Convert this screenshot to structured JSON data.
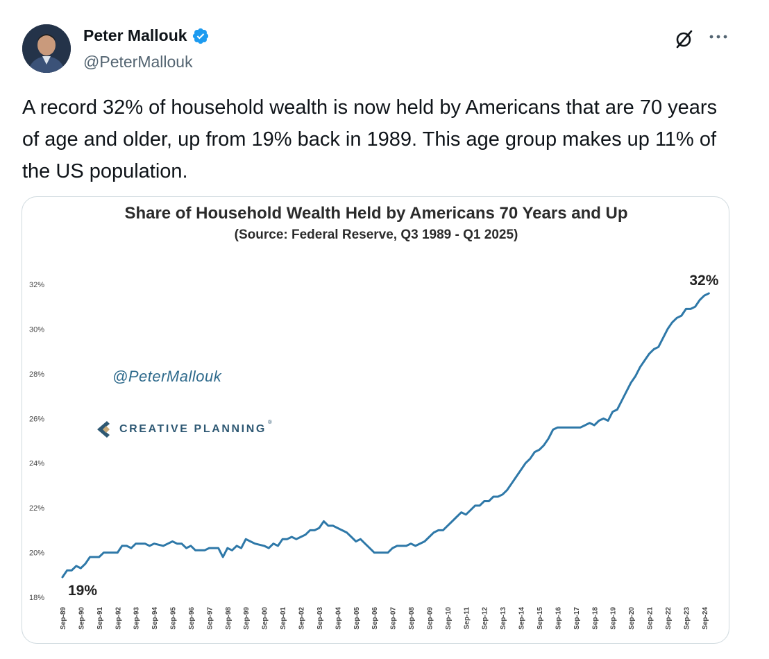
{
  "author": {
    "display_name": "Peter Mallouk",
    "handle": "@PeterMallouk",
    "verified": true
  },
  "icons": {
    "avatar": "avatar-photo",
    "verified": "verified-badge-icon",
    "grok": "grok-slash-icon",
    "more": "more-options-icon"
  },
  "colors": {
    "verified_blue": "#1d9bf0",
    "line": "#2e78a8",
    "brand_navy": "#2e5873",
    "brand_tan": "#c8a978"
  },
  "tweet": {
    "text": "A record 32% of household wealth is now held by Americans that are 70 years of age and older, up from 19% back in 1989. This age group makes up 11% of the US population."
  },
  "media": {
    "watermark_handle": "@PeterMallouk",
    "brand_name": "CREATIVE PLANNING",
    "brand_mark": "®"
  },
  "chart_data": {
    "type": "line",
    "title": "Share of Household Wealth Held by Americans 70 Years and Up",
    "subtitle": "(Source: Federal Reserve, Q3 1989 - Q1 2025)",
    "xlabel": "",
    "ylabel": "",
    "ylim": [
      18,
      32
    ],
    "yticks": [
      "18%",
      "20%",
      "22%",
      "24%",
      "26%",
      "28%",
      "30%",
      "32%"
    ],
    "ytick_values": [
      18,
      20,
      22,
      24,
      26,
      28,
      30,
      32
    ],
    "xticks": [
      "Sep-89",
      "Sep-90",
      "Sep-91",
      "Sep-92",
      "Sep-93",
      "Sep-94",
      "Sep-95",
      "Sep-96",
      "Sep-97",
      "Sep-98",
      "Sep-99",
      "Sep-00",
      "Sep-01",
      "Sep-02",
      "Sep-03",
      "Sep-04",
      "Sep-05",
      "Sep-06",
      "Sep-07",
      "Sep-08",
      "Sep-09",
      "Sep-10",
      "Sep-11",
      "Sep-12",
      "Sep-13",
      "Sep-14",
      "Sep-15",
      "Sep-16",
      "Sep-17",
      "Sep-18",
      "Sep-19",
      "Sep-20",
      "Sep-21",
      "Sep-22",
      "Sep-23",
      "Sep-24"
    ],
    "xrange": [
      1989.75,
      2025.25
    ],
    "grid": false,
    "annotations": [
      {
        "text": "19%",
        "x": 1989.75,
        "y": 18.9
      },
      {
        "text": "32%",
        "x": 2025.0,
        "y": 31.6
      }
    ],
    "series": [
      {
        "points": [
          [
            1989.75,
            18.9
          ],
          [
            1990.0,
            19.2
          ],
          [
            1990.25,
            19.2
          ],
          [
            1990.5,
            19.4
          ],
          [
            1990.75,
            19.3
          ],
          [
            1991.0,
            19.5
          ],
          [
            1991.25,
            19.8
          ],
          [
            1991.75,
            19.8
          ],
          [
            1992.0,
            20.0
          ],
          [
            1992.75,
            20.0
          ],
          [
            1993.0,
            20.3
          ],
          [
            1993.25,
            20.3
          ],
          [
            1993.5,
            20.2
          ],
          [
            1993.75,
            20.4
          ],
          [
            1994.25,
            20.4
          ],
          [
            1994.5,
            20.3
          ],
          [
            1994.75,
            20.4
          ],
          [
            1995.25,
            20.3
          ],
          [
            1995.5,
            20.4
          ],
          [
            1995.75,
            20.5
          ],
          [
            1996.0,
            20.4
          ],
          [
            1996.25,
            20.4
          ],
          [
            1996.5,
            20.2
          ],
          [
            1996.75,
            20.3
          ],
          [
            1997.0,
            20.1
          ],
          [
            1997.5,
            20.1
          ],
          [
            1997.75,
            20.2
          ],
          [
            1998.0,
            20.2
          ],
          [
            1998.25,
            20.2
          ],
          [
            1998.5,
            19.8
          ],
          [
            1998.75,
            20.2
          ],
          [
            1999.0,
            20.1
          ],
          [
            1999.25,
            20.3
          ],
          [
            1999.5,
            20.2
          ],
          [
            1999.75,
            20.6
          ],
          [
            2000.0,
            20.5
          ],
          [
            2000.25,
            20.4
          ],
          [
            2000.75,
            20.3
          ],
          [
            2001.0,
            20.2
          ],
          [
            2001.25,
            20.4
          ],
          [
            2001.5,
            20.3
          ],
          [
            2001.75,
            20.6
          ],
          [
            2002.0,
            20.6
          ],
          [
            2002.25,
            20.7
          ],
          [
            2002.5,
            20.6
          ],
          [
            2002.75,
            20.7
          ],
          [
            2003.0,
            20.8
          ],
          [
            2003.25,
            21.0
          ],
          [
            2003.5,
            21.0
          ],
          [
            2003.75,
            21.1
          ],
          [
            2004.0,
            21.4
          ],
          [
            2004.25,
            21.2
          ],
          [
            2004.5,
            21.2
          ],
          [
            2004.75,
            21.1
          ],
          [
            2005.0,
            21.0
          ],
          [
            2005.25,
            20.9
          ],
          [
            2005.5,
            20.7
          ],
          [
            2005.75,
            20.5
          ],
          [
            2006.0,
            20.6
          ],
          [
            2006.25,
            20.4
          ],
          [
            2006.5,
            20.2
          ],
          [
            2006.75,
            20.0
          ],
          [
            2007.5,
            20.0
          ],
          [
            2007.75,
            20.2
          ],
          [
            2008.0,
            20.3
          ],
          [
            2008.5,
            20.3
          ],
          [
            2008.75,
            20.4
          ],
          [
            2009.0,
            20.3
          ],
          [
            2009.5,
            20.5
          ],
          [
            2009.75,
            20.7
          ],
          [
            2010.0,
            20.9
          ],
          [
            2010.25,
            21.0
          ],
          [
            2010.5,
            21.0
          ],
          [
            2010.75,
            21.2
          ],
          [
            2011.0,
            21.4
          ],
          [
            2011.25,
            21.6
          ],
          [
            2011.5,
            21.8
          ],
          [
            2011.75,
            21.7
          ],
          [
            2012.0,
            21.9
          ],
          [
            2012.25,
            22.1
          ],
          [
            2012.5,
            22.1
          ],
          [
            2012.75,
            22.3
          ],
          [
            2013.0,
            22.3
          ],
          [
            2013.25,
            22.5
          ],
          [
            2013.5,
            22.5
          ],
          [
            2013.75,
            22.6
          ],
          [
            2014.0,
            22.8
          ],
          [
            2014.25,
            23.1
          ],
          [
            2014.5,
            23.4
          ],
          [
            2014.75,
            23.7
          ],
          [
            2015.0,
            24.0
          ],
          [
            2015.25,
            24.2
          ],
          [
            2015.5,
            24.5
          ],
          [
            2015.75,
            24.6
          ],
          [
            2016.0,
            24.8
          ],
          [
            2016.25,
            25.1
          ],
          [
            2016.5,
            25.5
          ],
          [
            2016.75,
            25.6
          ],
          [
            2017.0,
            25.6
          ],
          [
            2018.0,
            25.6
          ],
          [
            2018.25,
            25.7
          ],
          [
            2018.5,
            25.8
          ],
          [
            2018.75,
            25.7
          ],
          [
            2019.0,
            25.9
          ],
          [
            2019.25,
            26.0
          ],
          [
            2019.5,
            25.9
          ],
          [
            2019.75,
            26.3
          ],
          [
            2020.0,
            26.4
          ],
          [
            2020.25,
            26.8
          ],
          [
            2020.5,
            27.2
          ],
          [
            2020.75,
            27.6
          ],
          [
            2021.0,
            27.9
          ],
          [
            2021.25,
            28.3
          ],
          [
            2021.5,
            28.6
          ],
          [
            2021.75,
            28.9
          ],
          [
            2022.0,
            29.1
          ],
          [
            2022.25,
            29.2
          ],
          [
            2022.5,
            29.6
          ],
          [
            2022.75,
            30.0
          ],
          [
            2023.0,
            30.3
          ],
          [
            2023.25,
            30.5
          ],
          [
            2023.5,
            30.6
          ],
          [
            2023.75,
            30.9
          ],
          [
            2024.0,
            30.9
          ],
          [
            2024.25,
            31.0
          ],
          [
            2024.5,
            31.3
          ],
          [
            2024.75,
            31.5
          ],
          [
            2025.0,
            31.6
          ]
        ]
      }
    ]
  }
}
